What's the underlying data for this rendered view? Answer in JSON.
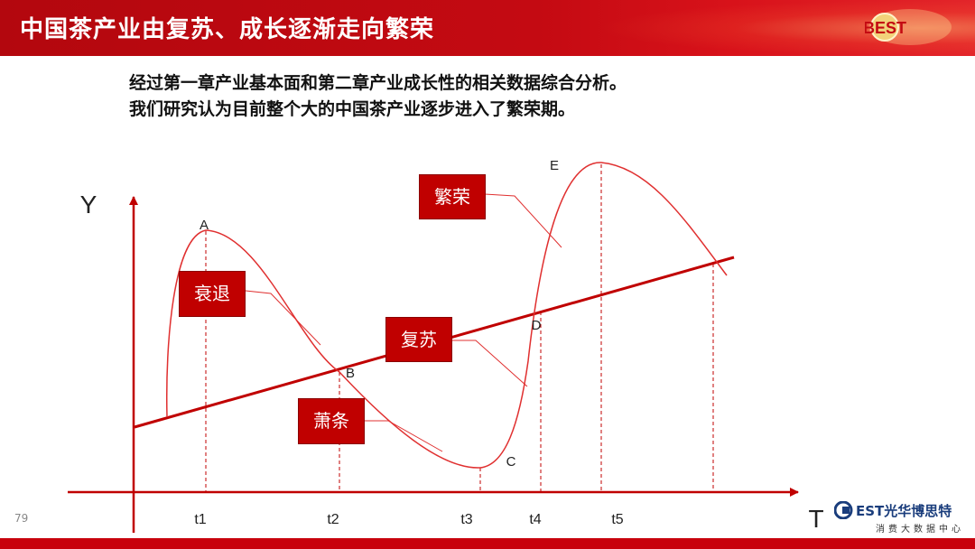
{
  "header": {
    "title": "中国茶产业由复苏、成长逐渐走向繁荣",
    "logo_text": "BEST"
  },
  "intro": {
    "line1": "经过第一章产业基本面和第二章产业成长性的相关数据综合分析。",
    "line2": "我们研究认为目前整个大的中国茶产业逐步进入了繁荣期。"
  },
  "diagram": {
    "y_axis": "Y",
    "x_axis": "T",
    "points": {
      "a": "A",
      "b": "B",
      "c": "C",
      "d": "D",
      "e": "E"
    },
    "ticks": [
      "t1",
      "t2",
      "t3",
      "t4",
      "t5"
    ],
    "phases": {
      "decline": "衰退",
      "depression": "萧条",
      "recovery": "复苏",
      "prosperity": "繁荣"
    }
  },
  "footer": {
    "page_number": "79",
    "brand_name": "光华博思特",
    "brand_logo": "EST",
    "brand_sub": "消费大数据中心"
  },
  "colors": {
    "accent": "#c00000",
    "line": "#d42020",
    "brand_blue": "#1a3d7c"
  }
}
